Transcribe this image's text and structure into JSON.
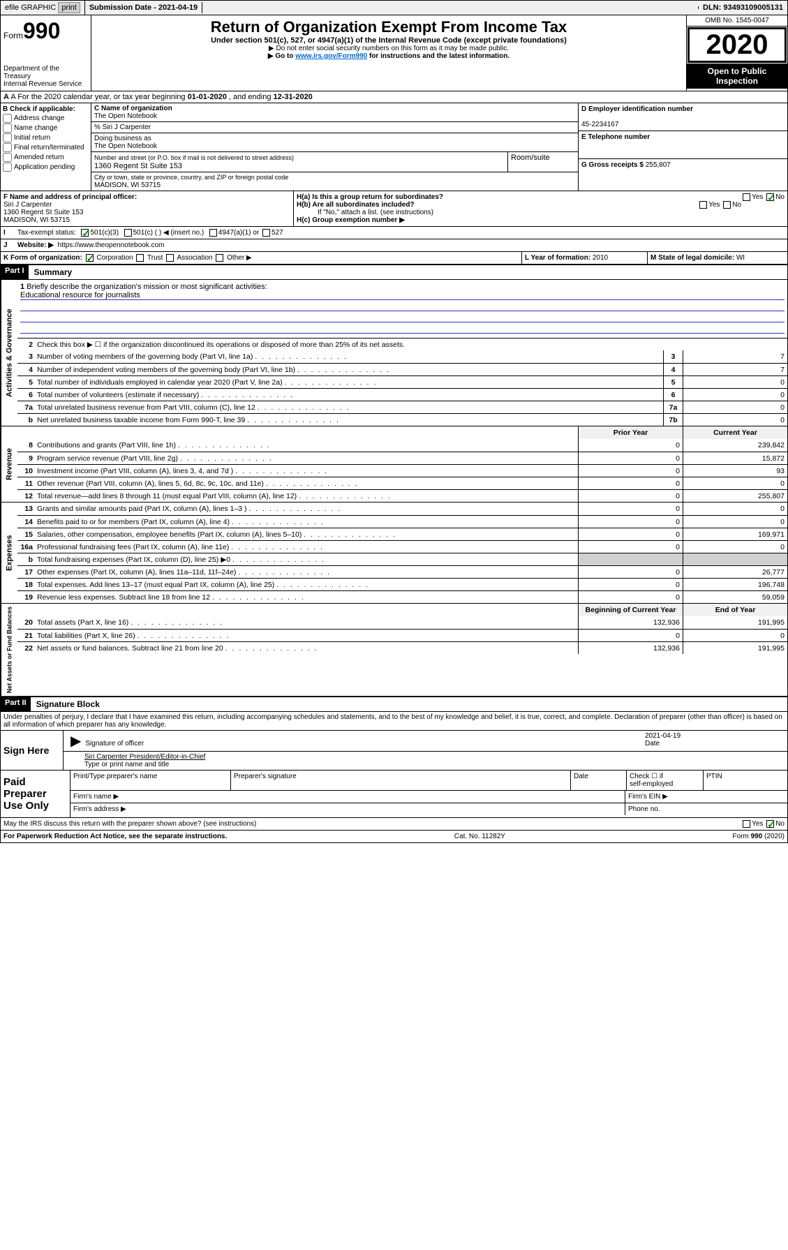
{
  "topbar": {
    "efile": "efile GRAPHIC",
    "print": "print",
    "sub_lbl": "Submission Date - ",
    "sub_date": "2021-04-19",
    "dln_lbl": "DLN: ",
    "dln": "93493109005131"
  },
  "header": {
    "form": "Form",
    "num": "990",
    "title": "Return of Organization Exempt From Income Tax",
    "sub": "Under section 501(c), 527, or 4947(a)(1) of the Internal Revenue Code (except private foundations)",
    "note1": "▶ Do not enter social security numbers on this form as it may be made public.",
    "note2_pre": "▶ Go to ",
    "note2_link": "www.irs.gov/Form990",
    "note2_post": " for instructions and the latest information.",
    "dept": "Department of the Treasury",
    "irs": "Internal Revenue Service",
    "omb": "OMB No. 1545-0047",
    "year": "2020",
    "open": "Open to Public Inspection"
  },
  "rowA": {
    "pre": "A For the 2020 calendar year, or tax year beginning ",
    "d1": "01-01-2020",
    "mid": " , and ending ",
    "d2": "12-31-2020"
  },
  "colB": {
    "hdr": "B Check if applicable:",
    "items": [
      "Address change",
      "Name change",
      "Initial return",
      "Final return/terminated",
      "Amended return",
      "Application pending"
    ]
  },
  "colC": {
    "name_lbl": "C Name of organization",
    "name": "The Open Notebook",
    "careof": "% Siri J Carpenter",
    "dba_lbl": "Doing business as",
    "dba": "The Open Notebook",
    "addr_lbl": "Number and street (or P.O. box if mail is not delivered to street address)",
    "room_lbl": "Room/suite",
    "addr": "1360 Regent St Suite 153",
    "city_lbl": "City or town, state or province, country, and ZIP or foreign postal code",
    "city": "MADISON, WI  53715"
  },
  "colD": {
    "ein_lbl": "D Employer identification number",
    "ein": "45-2234167",
    "tel_lbl": "E Telephone number",
    "tel": "",
    "g_lbl": "G Gross receipts $ ",
    "g": "255,807"
  },
  "fgh": {
    "f_lbl": "F  Name and address of principal officer:",
    "f_name": "Siri J Carpenter",
    "f_addr1": "1360 Regent St Suite 153",
    "f_addr2": "MADISON, WI  53715",
    "ha": "H(a)  Is this a group return for subordinates?",
    "hb": "H(b)  Are all subordinates included?",
    "hb_note": "If \"No,\" attach a list. (see instructions)",
    "hc": "H(c)  Group exemption number ▶",
    "yes": "Yes",
    "no": "No"
  },
  "rowI": {
    "lbl": "Tax-exempt status:",
    "o1": "501(c)(3)",
    "o2": "501(c) (   ) ◀ (insert no.)",
    "o3": "4947(a)(1) or",
    "o4": "527"
  },
  "rowJ": {
    "lbl": "Website: ▶",
    "url": "https://www.theopennotebook.com"
  },
  "klm": {
    "k": "K Form of organization:",
    "k1": "Corporation",
    "k2": "Trust",
    "k3": "Association",
    "k4": "Other ▶",
    "l": "L Year of formation: ",
    "lval": "2010",
    "m": "M State of legal domicile: ",
    "mval": "WI"
  },
  "partI": {
    "hdr": "Part I",
    "title": "Summary"
  },
  "summary": {
    "l1_lbl": "Briefly describe the organization's mission or most significant activities:",
    "l1_txt": "Educational resource for journalists",
    "l2": "Check this box ▶ ☐  if the organization discontinued its operations or disposed of more than 25% of its net assets.",
    "lines": [
      {
        "n": "3",
        "t": "Number of voting members of the governing body (Part VI, line 1a)",
        "b": "3",
        "v": "7"
      },
      {
        "n": "4",
        "t": "Number of independent voting members of the governing body (Part VI, line 1b)",
        "b": "4",
        "v": "7"
      },
      {
        "n": "5",
        "t": "Total number of individuals employed in calendar year 2020 (Part V, line 2a)",
        "b": "5",
        "v": "0"
      },
      {
        "n": "6",
        "t": "Total number of volunteers (estimate if necessary)",
        "b": "6",
        "v": "0"
      },
      {
        "n": "7a",
        "t": "Total unrelated business revenue from Part VIII, column (C), line 12",
        "b": "7a",
        "v": "0"
      },
      {
        "n": "b",
        "t": "Net unrelated business taxable income from Form 990-T, line 39",
        "b": "7b",
        "v": "0"
      }
    ],
    "py": "Prior Year",
    "cy": "Current Year",
    "rev": [
      {
        "n": "8",
        "t": "Contributions and grants (Part VIII, line 1h)",
        "p": "0",
        "c": "239,842"
      },
      {
        "n": "9",
        "t": "Program service revenue (Part VIII, line 2g)",
        "p": "0",
        "c": "15,872"
      },
      {
        "n": "10",
        "t": "Investment income (Part VIII, column (A), lines 3, 4, and 7d )",
        "p": "0",
        "c": "93"
      },
      {
        "n": "11",
        "t": "Other revenue (Part VIII, column (A), lines 5, 6d, 8c, 9c, 10c, and 11e)",
        "p": "0",
        "c": "0"
      },
      {
        "n": "12",
        "t": "Total revenue—add lines 8 through 11 (must equal Part VIII, column (A), line 12)",
        "p": "0",
        "c": "255,807"
      }
    ],
    "exp": [
      {
        "n": "13",
        "t": "Grants and similar amounts paid (Part IX, column (A), lines 1–3 )",
        "p": "0",
        "c": "0"
      },
      {
        "n": "14",
        "t": "Benefits paid to or for members (Part IX, column (A), line 4)",
        "p": "0",
        "c": "0"
      },
      {
        "n": "15",
        "t": "Salaries, other compensation, employee benefits (Part IX, column (A), lines 5–10)",
        "p": "0",
        "c": "169,971"
      },
      {
        "n": "16a",
        "t": "Professional fundraising fees (Part IX, column (A), line 11e)",
        "p": "0",
        "c": "0"
      },
      {
        "n": "b",
        "t": "Total fundraising expenses (Part IX, column (D), line 25) ▶0",
        "p": "",
        "c": "",
        "shade": true
      },
      {
        "n": "17",
        "t": "Other expenses (Part IX, column (A), lines 11a–11d, 11f–24e)",
        "p": "0",
        "c": "26,777"
      },
      {
        "n": "18",
        "t": "Total expenses. Add lines 13–17 (must equal Part IX, column (A), line 25)",
        "p": "0",
        "c": "196,748"
      },
      {
        "n": "19",
        "t": "Revenue less expenses. Subtract line 18 from line 12",
        "p": "0",
        "c": "59,059"
      }
    ],
    "bcy": "Beginning of Current Year",
    "eoy": "End of Year",
    "net": [
      {
        "n": "20",
        "t": "Total assets (Part X, line 16)",
        "p": "132,936",
        "c": "191,995"
      },
      {
        "n": "21",
        "t": "Total liabilities (Part X, line 26)",
        "p": "0",
        "c": "0"
      },
      {
        "n": "22",
        "t": "Net assets or fund balances. Subtract line 21 from line 20",
        "p": "132,936",
        "c": "191,995"
      }
    ]
  },
  "vtabs": {
    "ag": "Activities & Governance",
    "rev": "Revenue",
    "exp": "Expenses",
    "net": "Net Assets or Fund Balances"
  },
  "partII": {
    "hdr": "Part II",
    "title": "Signature Block",
    "perjury": "Under penalties of perjury, I declare that I have examined this return, including accompanying schedules and statements, and to the best of my knowledge and belief, it is true, correct, and complete. Declaration of preparer (other than officer) is based on all information of which preparer has any knowledge."
  },
  "sign": {
    "here": "Sign Here",
    "sig_lbl": "Signature of officer",
    "date_lbl": "Date",
    "date": "2021-04-19",
    "name": "Siri Carpenter  President/Editor-in-Chief",
    "name_lbl": "Type or print name and title"
  },
  "prep": {
    "lbl": "Paid Preparer Use Only",
    "c1": "Print/Type preparer's name",
    "c2": "Preparer's signature",
    "c3": "Date",
    "c4a": "Check ☐ if",
    "c4b": "self-employed",
    "c5": "PTIN",
    "firm": "Firm's name   ▶",
    "ein": "Firm's EIN ▶",
    "addr": "Firm's address ▶",
    "phone": "Phone no."
  },
  "discuss": {
    "txt": "May the IRS discuss this return with the preparer shown above? (see instructions)",
    "yes": "Yes",
    "no": "No"
  },
  "footer": {
    "l": "For Paperwork Reduction Act Notice, see the separate instructions.",
    "m": "Cat. No. 11282Y",
    "r": "Form 990 (2020)"
  }
}
